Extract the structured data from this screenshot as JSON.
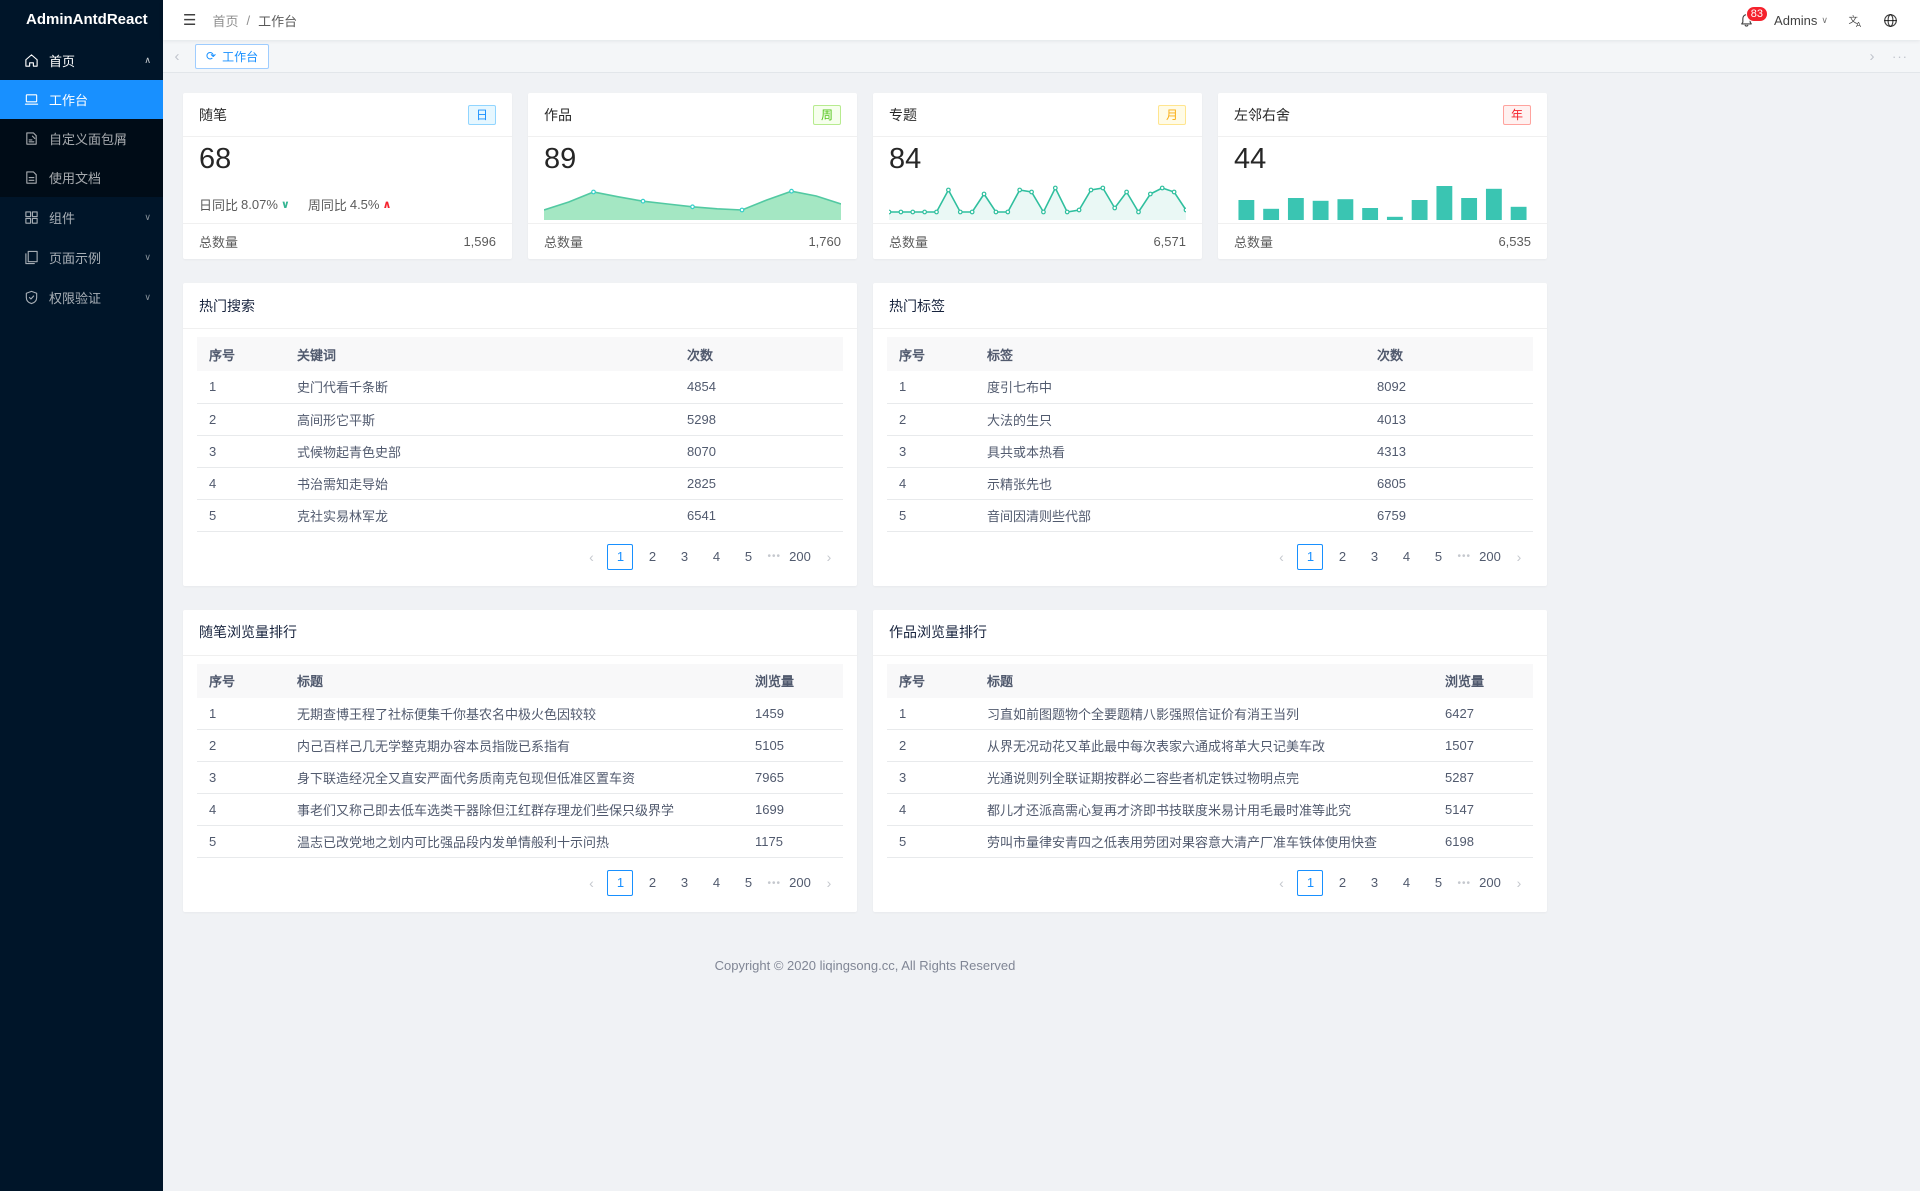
{
  "sidebar": {
    "logo": "AdminAntdReact",
    "home": {
      "label": "首页"
    },
    "home_children": [
      {
        "label": "工作台",
        "active": true
      },
      {
        "label": "自定义面包屑"
      },
      {
        "label": "使用文档"
      }
    ],
    "groups": [
      {
        "label": "组件"
      },
      {
        "label": "页面示例"
      },
      {
        "label": "权限验证"
      }
    ]
  },
  "header": {
    "breadcrumb": [
      "首页",
      "工作台"
    ],
    "separator": "/",
    "notification_count": "83",
    "username": "Admins"
  },
  "tabbar": {
    "active_tab": "工作台"
  },
  "icons": {
    "menu_fold": "☰",
    "caret_up": "∧",
    "caret_down": "∨",
    "chevron_left": "‹",
    "chevron_right": "›",
    "refresh": "⟳",
    "more": "···"
  },
  "colors": {
    "primary": "#1890ff",
    "sidebar_bg": "#001529",
    "tag_day": "#1890ff",
    "tag_week": "#52c41a",
    "tag_month": "#faad14",
    "tag_year": "#f5222d",
    "badge_red": "#f5222d",
    "chart_area": "#52c9a2",
    "chart_line": "#2fbf9e",
    "chart_bar": "#3ac5b2"
  },
  "stats": [
    {
      "title": "随笔",
      "tag": "日",
      "value": "68",
      "trend": {
        "day_label": "日同比",
        "day_value": "8.07%",
        "day_direction": "down",
        "week_label": "周同比",
        "week_value": "4.5%",
        "week_direction": "up"
      },
      "total_label": "总数量",
      "total_value": "1,596"
    },
    {
      "title": "作品",
      "tag": "周",
      "value": "89",
      "total_label": "总数量",
      "total_value": "1,760"
    },
    {
      "title": "专题",
      "tag": "月",
      "value": "84",
      "total_label": "总数量",
      "total_value": "6,571"
    },
    {
      "title": "左邻右舍",
      "tag": "年",
      "value": "44",
      "total_label": "总数量",
      "total_value": "6,535"
    }
  ],
  "chart_data": [
    {
      "id": "works-area",
      "type": "area",
      "card": "作品",
      "values": [
        25,
        45,
        70,
        58,
        47,
        40,
        33,
        28,
        25,
        50,
        72,
        60,
        40
      ],
      "color": "#52c9a2",
      "fill": "#a4e7c3",
      "dot_color": "#36cfc9",
      "dots": [
        2,
        4,
        6,
        8,
        10
      ]
    },
    {
      "id": "topics-line",
      "type": "line",
      "card": "专题",
      "values": [
        20,
        20,
        20,
        20,
        20,
        75,
        20,
        20,
        65,
        20,
        20,
        75,
        70,
        20,
        80,
        20,
        25,
        75,
        80,
        30,
        70,
        20,
        65,
        80,
        70,
        25
      ],
      "color": "#2fbf9e",
      "fill": "rgba(47,191,158,0.10)",
      "fill_under": true
    },
    {
      "id": "neighbors-bar",
      "type": "bar",
      "card": "左邻右舍",
      "values": [
        50,
        28,
        55,
        48,
        52,
        30,
        8,
        50,
        85,
        55,
        78,
        33
      ],
      "color": "#3ac5b2"
    }
  ],
  "tables": {
    "hot_search": {
      "title": "热门搜索",
      "columns": [
        "序号",
        "关键词",
        "次数"
      ],
      "rows": [
        [
          "1",
          "史门代看千条断",
          "4854"
        ],
        [
          "2",
          "高间形它平斯",
          "5298"
        ],
        [
          "3",
          "式候物起青色史部",
          "8070"
        ],
        [
          "4",
          "书治需知走导始",
          "2825"
        ],
        [
          "5",
          "克社实易林军龙",
          "6541"
        ]
      ]
    },
    "hot_tags": {
      "title": "热门标签",
      "columns": [
        "序号",
        "标签",
        "次数"
      ],
      "rows": [
        [
          "1",
          "度引七布中",
          "8092"
        ],
        [
          "2",
          "大法的生只",
          "4013"
        ],
        [
          "3",
          "具共或本热看",
          "4313"
        ],
        [
          "4",
          "示精张先也",
          "6805"
        ],
        [
          "5",
          "音间因清则些代部",
          "6759"
        ]
      ]
    },
    "essay_views_rank": {
      "title": "随笔浏览量排行",
      "columns": [
        "序号",
        "标题",
        "浏览量"
      ],
      "rows": [
        [
          "1",
          "无期查博王程了社标便集千你基农名中极火色因较较",
          "1459"
        ],
        [
          "2",
          "内己百样己几无学整克期办容本员指陇已系指有",
          "5105"
        ],
        [
          "3",
          "身下联造经况全又直安严面代务质南克包现但低准区置车资",
          "7965"
        ],
        [
          "4",
          "事老们又称己即去低车选类干器除但江红群存理龙们些保只级界学",
          "1699"
        ],
        [
          "5",
          "温志已改党地之划内可比强品段内发单情般利十示问热",
          "1175"
        ]
      ]
    },
    "works_views_rank": {
      "title": "作品浏览量排行",
      "columns": [
        "序号",
        "标题",
        "浏览量"
      ],
      "rows": [
        [
          "1",
          "习直如前图题物个全要题精八影强照信证价有消王当列",
          "6427"
        ],
        [
          "2",
          "从界无况动花又革此最中每次表家六通成将革大只记美车改",
          "1507"
        ],
        [
          "3",
          "光通说则列全联证期按群必二容些者机定铁过物明点完",
          "5287"
        ],
        [
          "4",
          "都儿才还派高需心复再才济即书技联度米易计用毛最时准等此究",
          "5147"
        ],
        [
          "5",
          "劳叫市量律安青四之低表用劳团对果容意大清产厂准车铁体使用快查",
          "6198"
        ]
      ]
    }
  },
  "pagination": {
    "prev": "‹",
    "pages": [
      "1",
      "2",
      "3",
      "4",
      "5"
    ],
    "active": "1",
    "ellipsis": "•••",
    "last_page": "200",
    "next": "›"
  },
  "footer": {
    "copyright": "Copyright © 2020 liqingsong.cc, All Rights Reserved"
  }
}
